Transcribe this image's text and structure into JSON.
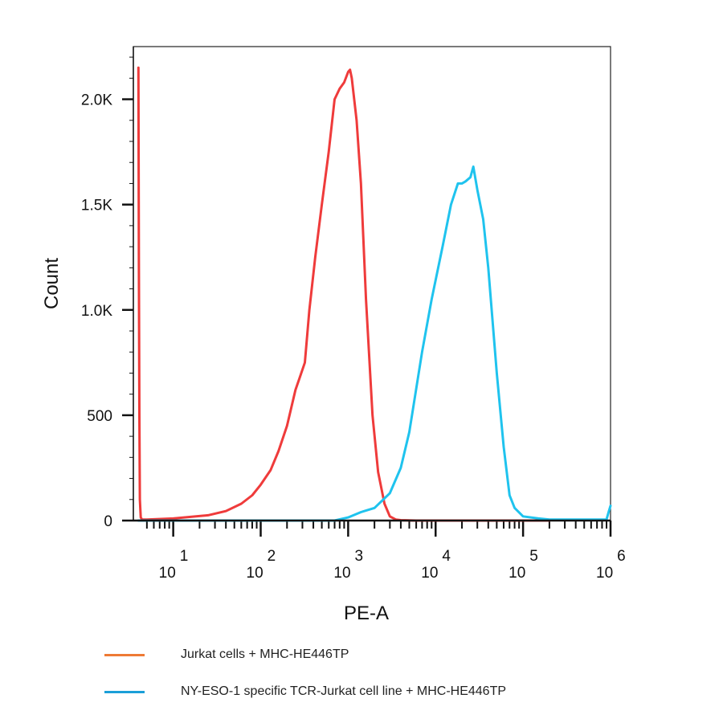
{
  "chart_data": {
    "type": "line",
    "xlabel": "PE-A",
    "ylabel": "Count",
    "xscale": "log",
    "xlim": [
      3.5,
      1000000
    ],
    "ylim": [
      0,
      2250
    ],
    "y_ticks": [
      {
        "value": 0,
        "label": "0"
      },
      {
        "value": 500,
        "label": "500"
      },
      {
        "value": 1000,
        "label": "1.0K"
      },
      {
        "value": 1500,
        "label": "1.5K"
      },
      {
        "value": 2000,
        "label": "2.0K"
      }
    ],
    "x_ticks": [
      {
        "value": 10,
        "base": "10",
        "exp": "1"
      },
      {
        "value": 100,
        "base": "10",
        "exp": "2"
      },
      {
        "value": 1000,
        "base": "10",
        "exp": "3"
      },
      {
        "value": 10000,
        "base": "10",
        "exp": "4"
      },
      {
        "value": 100000,
        "base": "10",
        "exp": "5"
      },
      {
        "value": 1000000,
        "base": "10",
        "exp": "6"
      }
    ],
    "series": [
      {
        "name": "Jurkat cells + MHC-HE446TP",
        "color": "#ef3b3b",
        "x": [
          4.0,
          4.05,
          4.1,
          4.15,
          4.25,
          4.4,
          5,
          10,
          25,
          40,
          60,
          80,
          100,
          130,
          160,
          200,
          250,
          280,
          320,
          360,
          420,
          500,
          600,
          700,
          800,
          900,
          1000,
          1050,
          1100,
          1250,
          1400,
          1600,
          1900,
          2200,
          2600,
          3000,
          3500,
          4000,
          6000,
          10000,
          50000,
          200000
        ],
        "y": [
          2150,
          1200,
          500,
          100,
          15,
          5,
          5,
          10,
          25,
          45,
          80,
          120,
          170,
          240,
          330,
          450,
          620,
          680,
          750,
          1000,
          1250,
          1500,
          1750,
          2000,
          2050,
          2080,
          2130,
          2140,
          2100,
          1900,
          1600,
          1050,
          500,
          230,
          80,
          20,
          5,
          2,
          0,
          0,
          0,
          0
        ]
      },
      {
        "name": "NY-ESO-1 specific TCR-Jurkat cell line + MHC-HE446TP",
        "color": "#1fc3ee",
        "x": [
          4,
          100,
          700,
          1000,
          1400,
          2000,
          3000,
          4000,
          5000,
          7000,
          9000,
          12000,
          15000,
          18000,
          20000,
          22000,
          25000,
          27000,
          30000,
          35000,
          40000,
          50000,
          60000,
          70000,
          80000,
          100000,
          150000,
          200000,
          500000,
          900000,
          950000,
          1000000
        ],
        "y": [
          0,
          0,
          0,
          15,
          40,
          60,
          130,
          250,
          420,
          800,
          1050,
          1300,
          1500,
          1600,
          1600,
          1610,
          1630,
          1680,
          1570,
          1430,
          1200,
          700,
          350,
          120,
          60,
          20,
          10,
          5,
          5,
          5,
          40,
          70
        ]
      }
    ],
    "legend": {
      "position": "bottom",
      "entries": [
        {
          "label": "Jurkat cells + MHC-HE446TP",
          "color": "#ee7a35"
        },
        {
          "label": "NY-ESO-1 specific TCR-Jurkat cell line + MHC-HE446TP",
          "color": "#1b9fd8"
        }
      ]
    }
  }
}
